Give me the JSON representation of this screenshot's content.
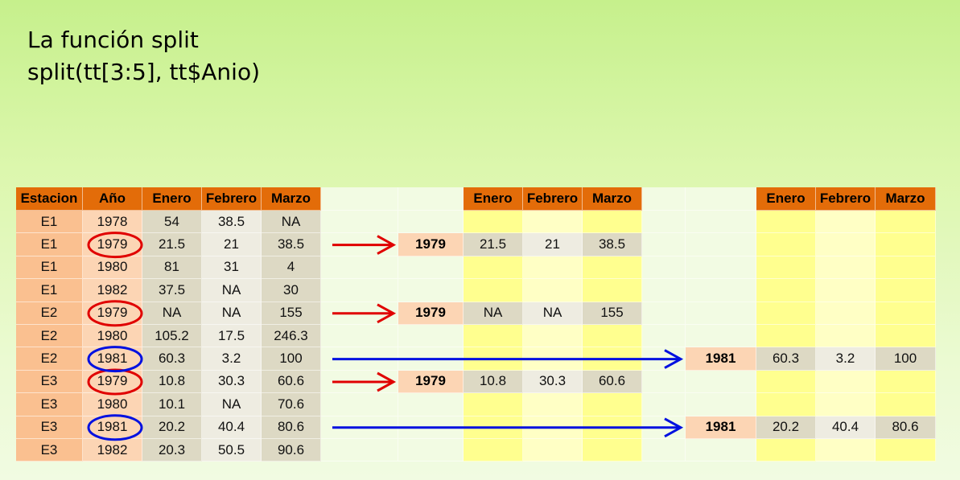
{
  "title": {
    "line1": "La función split",
    "line2": "split(tt[3:5], tt$Anio)"
  },
  "colors": {
    "header_orange": "#e36c09",
    "estacion_col": "#fac090",
    "year_col": "#fcd5b4",
    "month_gray": "#ddd9c4",
    "month_light": "#eeece1",
    "yellow": "#ffff8f",
    "yellow_light": "#ffffc5",
    "empty_cell": "#f2fbe3",
    "red_marker": "#e00000",
    "blue_marker": "#0010e0"
  },
  "source_table": {
    "headers": [
      "Estacion",
      "Año",
      "Enero",
      "Febrero",
      "Marzo"
    ],
    "rows": [
      [
        "E1",
        "1978",
        "54",
        "38.5",
        "NA"
      ],
      [
        "E1",
        "1979",
        "21.5",
        "21",
        "38.5"
      ],
      [
        "E1",
        "1980",
        "81",
        "31",
        "4"
      ],
      [
        "E1",
        "1982",
        "37.5",
        "NA",
        "30"
      ],
      [
        "E2",
        "1979",
        "NA",
        "NA",
        "155"
      ],
      [
        "E2",
        "1980",
        "105.2",
        "17.5",
        "246.3"
      ],
      [
        "E2",
        "1981",
        "60.3",
        "3.2",
        "100"
      ],
      [
        "E3",
        "1979",
        "10.8",
        "30.3",
        "60.6"
      ],
      [
        "E3",
        "1980",
        "10.1",
        "NA",
        "70.6"
      ],
      [
        "E3",
        "1981",
        "20.2",
        "40.4",
        "80.6"
      ],
      [
        "E3",
        "1982",
        "20.3",
        "50.5",
        "90.6"
      ]
    ]
  },
  "split_1979": {
    "headers": [
      "Enero",
      "Febrero",
      "Marzo"
    ],
    "entries": [
      {
        "row": 1,
        "year": "1979",
        "values": [
          "21.5",
          "21",
          "38.5"
        ]
      },
      {
        "row": 4,
        "year": "1979",
        "values": [
          "NA",
          "NA",
          "155"
        ]
      },
      {
        "row": 7,
        "year": "1979",
        "values": [
          "10.8",
          "30.3",
          "60.6"
        ]
      }
    ]
  },
  "split_1981": {
    "headers": [
      "Enero",
      "Febrero",
      "Marzo"
    ],
    "entries": [
      {
        "row": 6,
        "year": "1981",
        "values": [
          "60.3",
          "3.2",
          "100"
        ]
      },
      {
        "row": 9,
        "year": "1981",
        "values": [
          "20.2",
          "40.4",
          "80.6"
        ]
      }
    ]
  },
  "markers": {
    "red_rows": [
      1,
      4,
      7
    ],
    "blue_rows": [
      6,
      9
    ]
  }
}
